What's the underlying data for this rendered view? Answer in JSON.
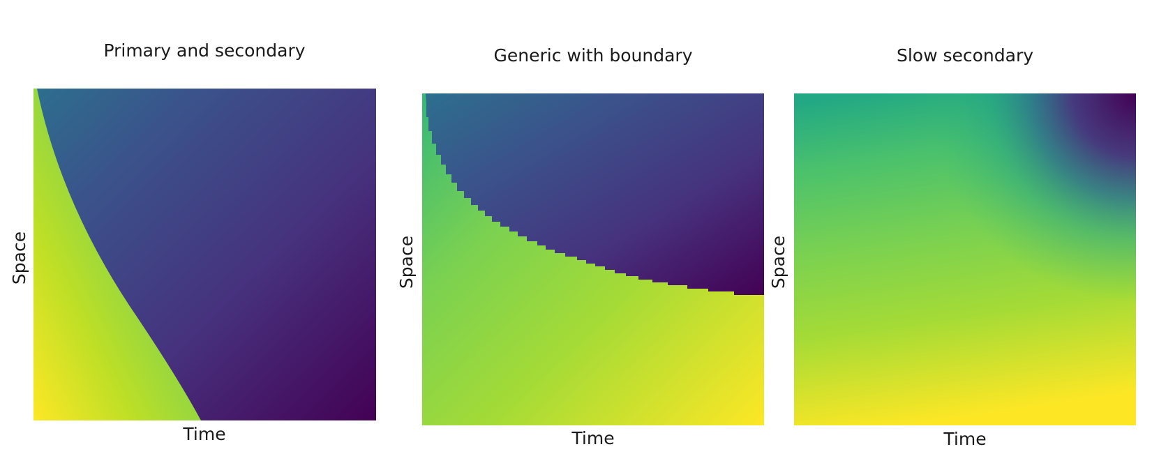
{
  "chart_data": [
    {
      "type": "heatmap",
      "title": "Primary and secondary",
      "xlabel": "Time",
      "ylabel": "Space",
      "colormap": "viridis",
      "grid": false,
      "front": "curved boundary from top-left to bottom-center",
      "colors": {
        "low": "#440154",
        "high": "#fde725"
      }
    },
    {
      "type": "heatmap",
      "title": "Generic with boundary",
      "xlabel": "Time",
      "ylabel": "Space",
      "colormap": "viridis",
      "grid": false,
      "front": "stepped boundary from top-left to right edge",
      "colors": {
        "low": "#440154",
        "high": "#fde725"
      }
    },
    {
      "type": "heatmap",
      "title": "Slow secondary",
      "xlabel": "Time",
      "ylabel": "Space",
      "colormap": "viridis",
      "grid": false,
      "front": "diffuse boundary near top-right",
      "colors": {
        "low": "#440154",
        "high": "#fde725"
      }
    }
  ]
}
